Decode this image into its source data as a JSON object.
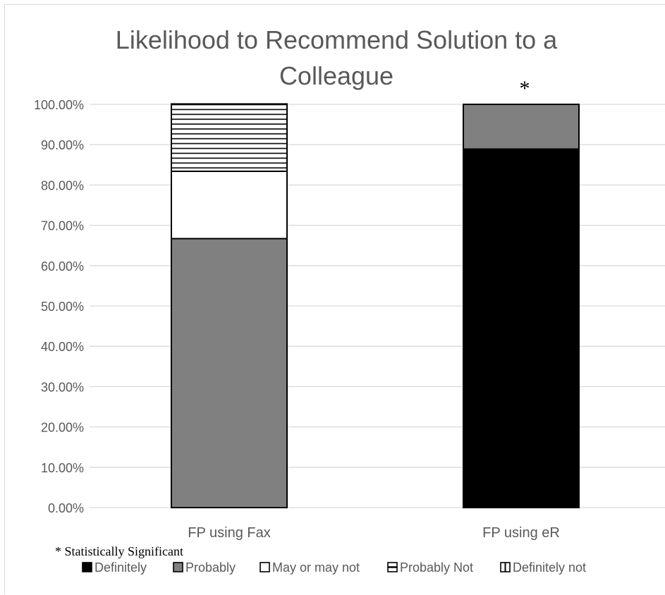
{
  "chart_data": {
    "type": "bar",
    "stacked": true,
    "title": "Likelihood to Recommend Solution to a Colleague",
    "title_lines": [
      "Likelihood to Recommend Solution to a",
      "Colleague"
    ],
    "categories": [
      "FP using Fax",
      "FP using eR"
    ],
    "ylim": [
      0,
      100
    ],
    "y_ticks": [
      0,
      10,
      20,
      30,
      40,
      50,
      60,
      70,
      80,
      90,
      100
    ],
    "y_tick_labels": [
      "0.00%",
      "10.00%",
      "20.00%",
      "30.00%",
      "40.00%",
      "50.00%",
      "60.00%",
      "70.00%",
      "80.00%",
      "90.00%",
      "100.00%"
    ],
    "grid": true,
    "legend_position": "bottom",
    "series": [
      {
        "name": "Definitely",
        "values": [
          0,
          88.9
        ],
        "fill": "#000000",
        "pattern": "solid"
      },
      {
        "name": "Probably",
        "values": [
          66.7,
          11.1
        ],
        "fill": "#808080",
        "pattern": "solid"
      },
      {
        "name": "May or may not",
        "values": [
          16.7,
          0
        ],
        "fill": "#ffffff",
        "pattern": "solid"
      },
      {
        "name": "Probably Not",
        "values": [
          16.7,
          0
        ],
        "fill": "#ffffff",
        "pattern": "horizontal-lines"
      },
      {
        "name": "Definitely not",
        "values": [
          0,
          0
        ],
        "fill": "#ffffff",
        "pattern": "vertical-half"
      }
    ],
    "significance_marker": "*",
    "significant_categories": [
      "FP using eR"
    ],
    "footnote": "* Statistically Significant"
  }
}
